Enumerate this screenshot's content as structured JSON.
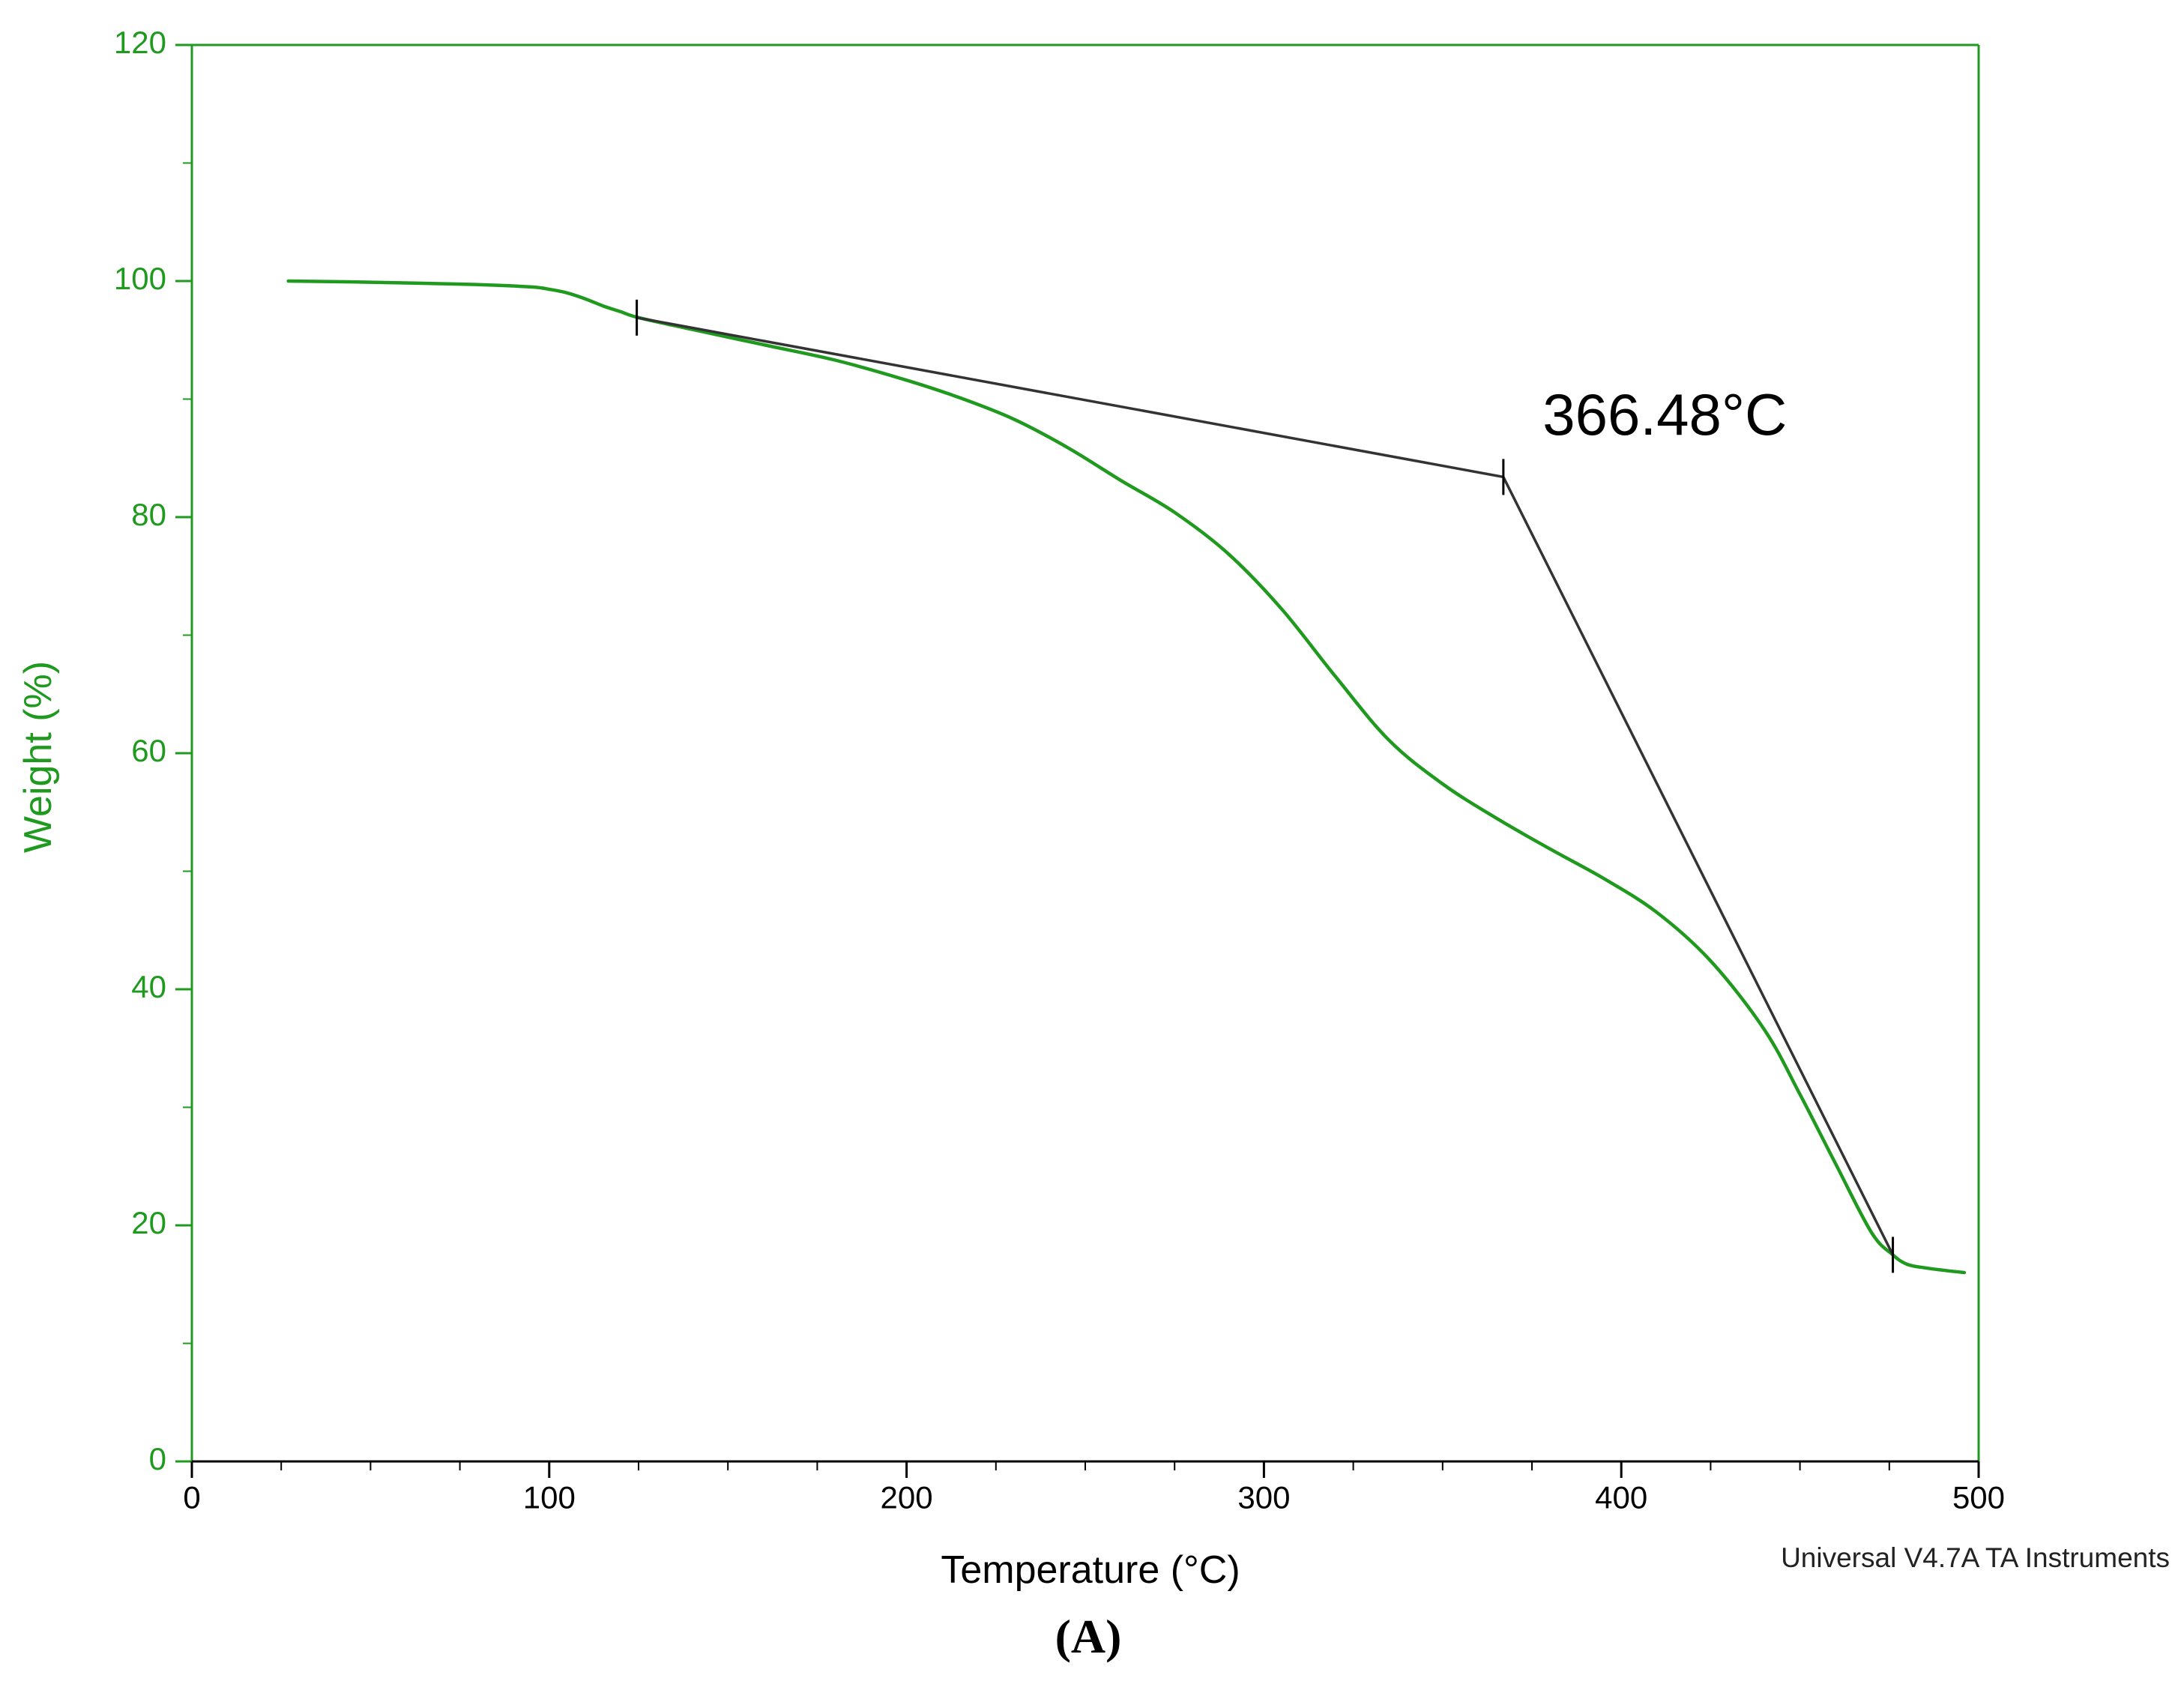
{
  "chart_data": {
    "type": "line",
    "title": "",
    "xlabel": "Temperature (°C)",
    "ylabel": "Weight (%)",
    "xlim": [
      0,
      500
    ],
    "ylim": [
      0,
      120
    ],
    "x_ticks": [
      0,
      100,
      200,
      300,
      400,
      500
    ],
    "y_ticks": [
      0,
      20,
      40,
      60,
      80,
      100,
      120
    ],
    "x_minor_step": 25,
    "y_minor_step": 10,
    "grid": false,
    "series": [
      {
        "color": "#1f9a1f",
        "x": [
          27,
          50,
          80,
          95,
          100,
          105,
          110,
          115,
          120,
          125,
          140,
          160,
          180,
          200,
          215,
          230,
          245,
          260,
          275,
          290,
          305,
          320,
          335,
          350,
          365,
          380,
          395,
          410,
          425,
          440,
          450,
          460,
          470,
          476,
          480,
          485,
          490,
          496
        ],
        "y": [
          100,
          99.9,
          99.7,
          99.5,
          99.3,
          99,
          98.5,
          97.9,
          97.4,
          96.9,
          95.9,
          94.6,
          93.3,
          91.6,
          90.1,
          88.3,
          85.9,
          83.1,
          80.4,
          76.9,
          72.2,
          66.5,
          61.1,
          57.4,
          54.5,
          51.9,
          49.4,
          46.5,
          42.4,
          36.6,
          31.1,
          25.2,
          19.4,
          17.5,
          16.7,
          16.4,
          16.2,
          16.0
        ]
      }
    ],
    "annotations": [
      {
        "type": "tangent_line",
        "color": "#333333",
        "points": [
          [
            124.5,
            96.9
          ],
          [
            367,
            83.4
          ],
          [
            476,
            17.5
          ]
        ],
        "markers": [
          [
            124.5,
            96.9
          ],
          [
            367,
            83.4
          ],
          [
            476,
            17.5
          ]
        ],
        "label": "366.48°C",
        "label_at": [
          378,
          87
        ]
      }
    ]
  },
  "colors": {
    "axis_green": "#1f9a1f",
    "curve_green": "#1f9a1f",
    "tangent": "#333333"
  },
  "footer": "Universal V4.7A TA Instruments",
  "panel_label": "(A)"
}
